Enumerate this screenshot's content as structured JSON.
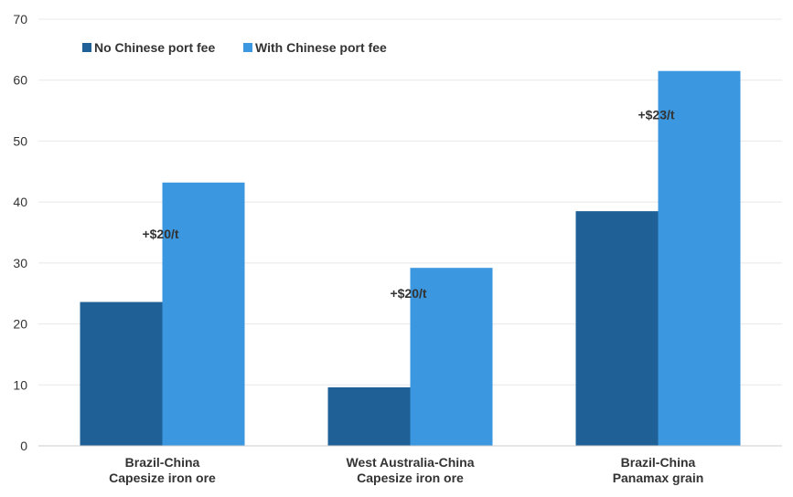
{
  "chart_data": {
    "type": "bar",
    "title": "",
    "xlabel": "",
    "ylabel": "",
    "ylim": [
      0,
      70
    ],
    "yticks": [
      0,
      10,
      20,
      30,
      40,
      50,
      60,
      70
    ],
    "grid": true,
    "legend_position": "top-left",
    "categories": [
      [
        "Brazil-China",
        "Capesize iron ore"
      ],
      [
        "West Australia-China",
        "Capesize iron ore"
      ],
      [
        "Brazil-China",
        "Panamax grain"
      ]
    ],
    "series": [
      {
        "name": "No Chinese port fee",
        "color": "#1f6096",
        "values": [
          23.6,
          9.6,
          38.5
        ]
      },
      {
        "name": "With Chinese port fee",
        "color": "#3b97df",
        "values": [
          43.2,
          29.2,
          61.5
        ]
      }
    ],
    "annotations": [
      {
        "text": "+$20/t",
        "category_index": 0,
        "y": 34.8
      },
      {
        "text": "+$20/t",
        "category_index": 1,
        "y": 25.0
      },
      {
        "text": "+$23/t",
        "category_index": 2,
        "y": 54.3
      }
    ],
    "colors": {
      "grid": "#e8e8e8",
      "axis": "#cccccc",
      "text": "#333333"
    }
  }
}
